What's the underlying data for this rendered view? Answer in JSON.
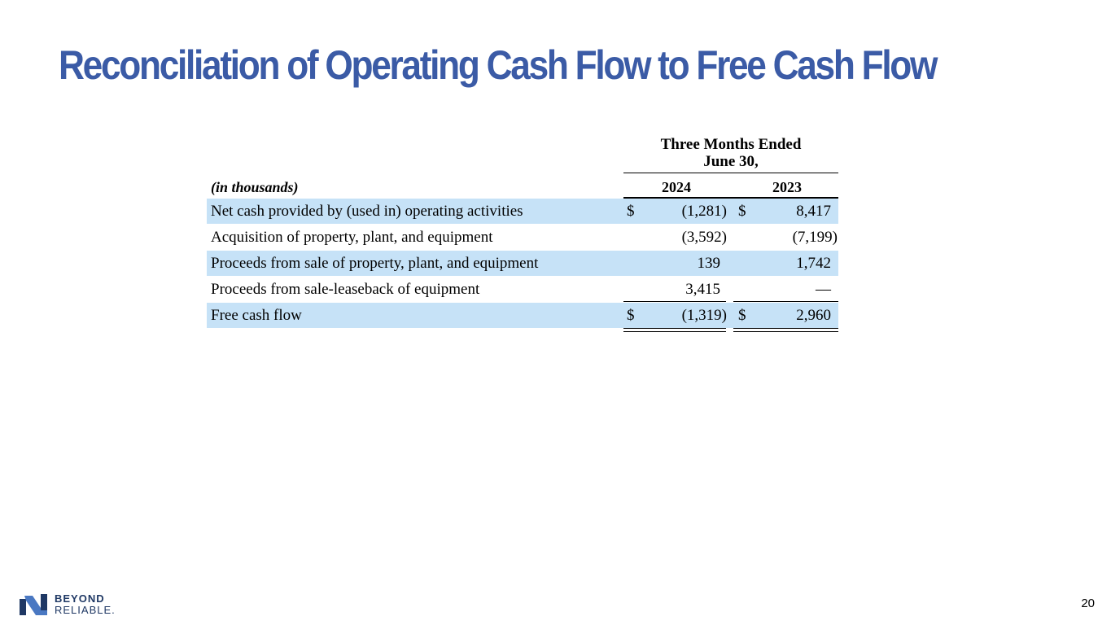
{
  "slide": {
    "title": "Reconciliation of Operating Cash Flow to Free Cash Flow",
    "page_number": "20"
  },
  "table": {
    "period_header": [
      "Three Months Ended",
      "June 30,"
    ],
    "units_label": "(in thousands)",
    "years": [
      "2024",
      "2023"
    ],
    "currency_symbol": "$",
    "rows": [
      {
        "label": "Net cash provided by (used in) operating activities",
        "v2024": "(1,281)",
        "v2023": "8,417",
        "show_currency": true,
        "band": true
      },
      {
        "label": "Acquisition of property, plant, and equipment",
        "v2024": "(3,592)",
        "v2023": "(7,199)",
        "show_currency": false,
        "band": false
      },
      {
        "label": "Proceeds from sale of property, plant, and equipment",
        "v2024": "139",
        "v2023": "1,742",
        "show_currency": false,
        "band": true
      },
      {
        "label": "Proceeds from sale-leaseback of equipment",
        "v2024": "3,415",
        "v2023": "—",
        "show_currency": false,
        "band": false
      },
      {
        "label": "Free cash flow",
        "v2024": "(1,319)",
        "v2023": "2,960",
        "show_currency": true,
        "band": true
      }
    ],
    "band_color": "#c6e2f7"
  },
  "logo": {
    "line1": "BEYOND",
    "line2": "RELIABLE.",
    "icon": "beyond-reliable-logo-mark-icon",
    "color": "#1f3864"
  },
  "colors": {
    "title": "#3b5ba6"
  }
}
